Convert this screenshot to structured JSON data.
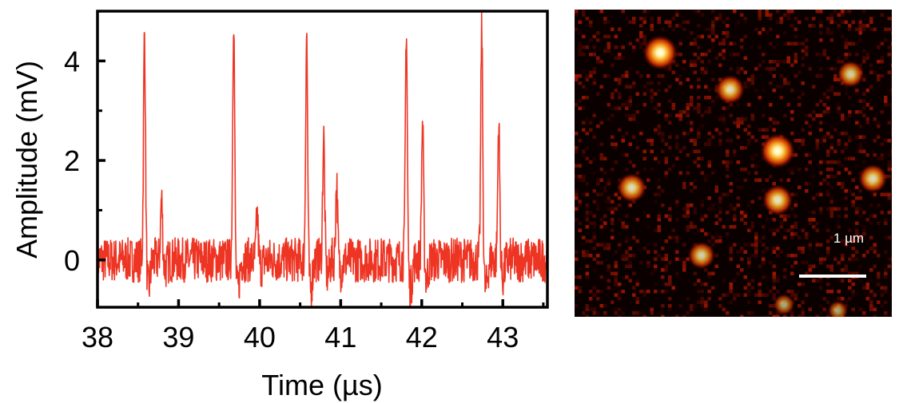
{
  "chart_data": [
    {
      "type": "line",
      "xlabel": "Time (µs)",
      "ylabel": "Amplitude (mV)",
      "xlim": [
        38.0,
        43.55
      ],
      "ylim": [
        -0.95,
        5.0
      ],
      "xticks": [
        "38",
        "39",
        "40",
        "41",
        "42",
        "43"
      ],
      "yticks": [
        "0",
        "2",
        "4"
      ],
      "xtick_values": [
        38,
        39,
        40,
        41,
        42,
        43
      ],
      "ytick_values": [
        0,
        2,
        4
      ],
      "grid": false,
      "series": [
        {
          "color": "#ee3524",
          "noise_amplitude_mV": 0.45,
          "peaks": [
            {
              "t": 38.58,
              "amp": 4.6
            },
            {
              "t": 38.79,
              "amp": 1.25
            },
            {
              "t": 39.68,
              "amp": 5.0
            },
            {
              "t": 39.97,
              "amp": 0.9
            },
            {
              "t": 40.58,
              "amp": 4.6
            },
            {
              "t": 40.79,
              "amp": 2.5
            },
            {
              "t": 40.95,
              "amp": 1.55
            },
            {
              "t": 41.81,
              "amp": 4.7
            },
            {
              "t": 42.01,
              "amp": 2.8
            },
            {
              "t": 42.74,
              "amp": 4.7
            },
            {
              "t": 42.95,
              "amp": 2.8
            }
          ]
        }
      ]
    },
    {
      "type": "heatmap",
      "colormap": "hot",
      "background": "#0a0000",
      "scale_bar_label": "1 µm",
      "spots": [
        {
          "x": 0.27,
          "y": 0.14,
          "intensity": 1.0
        },
        {
          "x": 0.49,
          "y": 0.26,
          "intensity": 0.72
        },
        {
          "x": 0.87,
          "y": 0.21,
          "intensity": 0.6
        },
        {
          "x": 0.64,
          "y": 0.46,
          "intensity": 1.0
        },
        {
          "x": 0.94,
          "y": 0.55,
          "intensity": 0.7
        },
        {
          "x": 0.18,
          "y": 0.58,
          "intensity": 0.72
        },
        {
          "x": 0.64,
          "y": 0.62,
          "intensity": 0.78
        },
        {
          "x": 0.4,
          "y": 0.8,
          "intensity": 0.62
        },
        {
          "x": 0.66,
          "y": 0.96,
          "intensity": 0.3
        },
        {
          "x": 0.83,
          "y": 0.98,
          "intensity": 0.25
        }
      ]
    }
  ]
}
